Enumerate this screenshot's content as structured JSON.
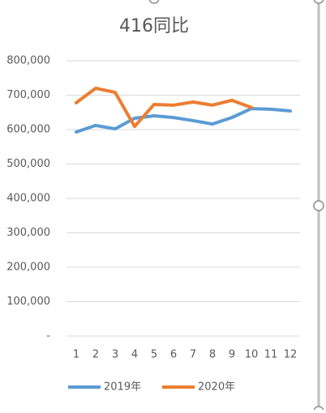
{
  "chart_data": {
    "type": "line",
    "title": "416同比",
    "categories": [
      "1",
      "2",
      "3",
      "4",
      "5",
      "6",
      "7",
      "8",
      "9",
      "10",
      "11",
      "12"
    ],
    "series": [
      {
        "name": "2019年",
        "color": "#5b9bd5",
        "values": [
          593000,
          612000,
          602000,
          633000,
          640000,
          635000,
          626000,
          616000,
          635000,
          661000,
          659000,
          654000
        ]
      },
      {
        "name": "2020年",
        "color": "#ed7d31",
        "values": [
          678000,
          720000,
          708000,
          609000,
          673000,
          671000,
          680000,
          671000,
          685000,
          664000,
          null,
          null
        ]
      }
    ],
    "ylim": [
      0,
      800000
    ],
    "yticks": [
      {
        "value": 0,
        "label": "-"
      },
      {
        "value": 100000,
        "label": "100,000"
      },
      {
        "value": 200000,
        "label": "200,000"
      },
      {
        "value": 300000,
        "label": "300,000"
      },
      {
        "value": 400000,
        "label": "400,000"
      },
      {
        "value": 500000,
        "label": "500,000"
      },
      {
        "value": 600000,
        "label": "600,000"
      },
      {
        "value": 700000,
        "label": "700,000"
      },
      {
        "value": 800000,
        "label": "800,000"
      }
    ],
    "grid": true,
    "legend": "bottom"
  }
}
